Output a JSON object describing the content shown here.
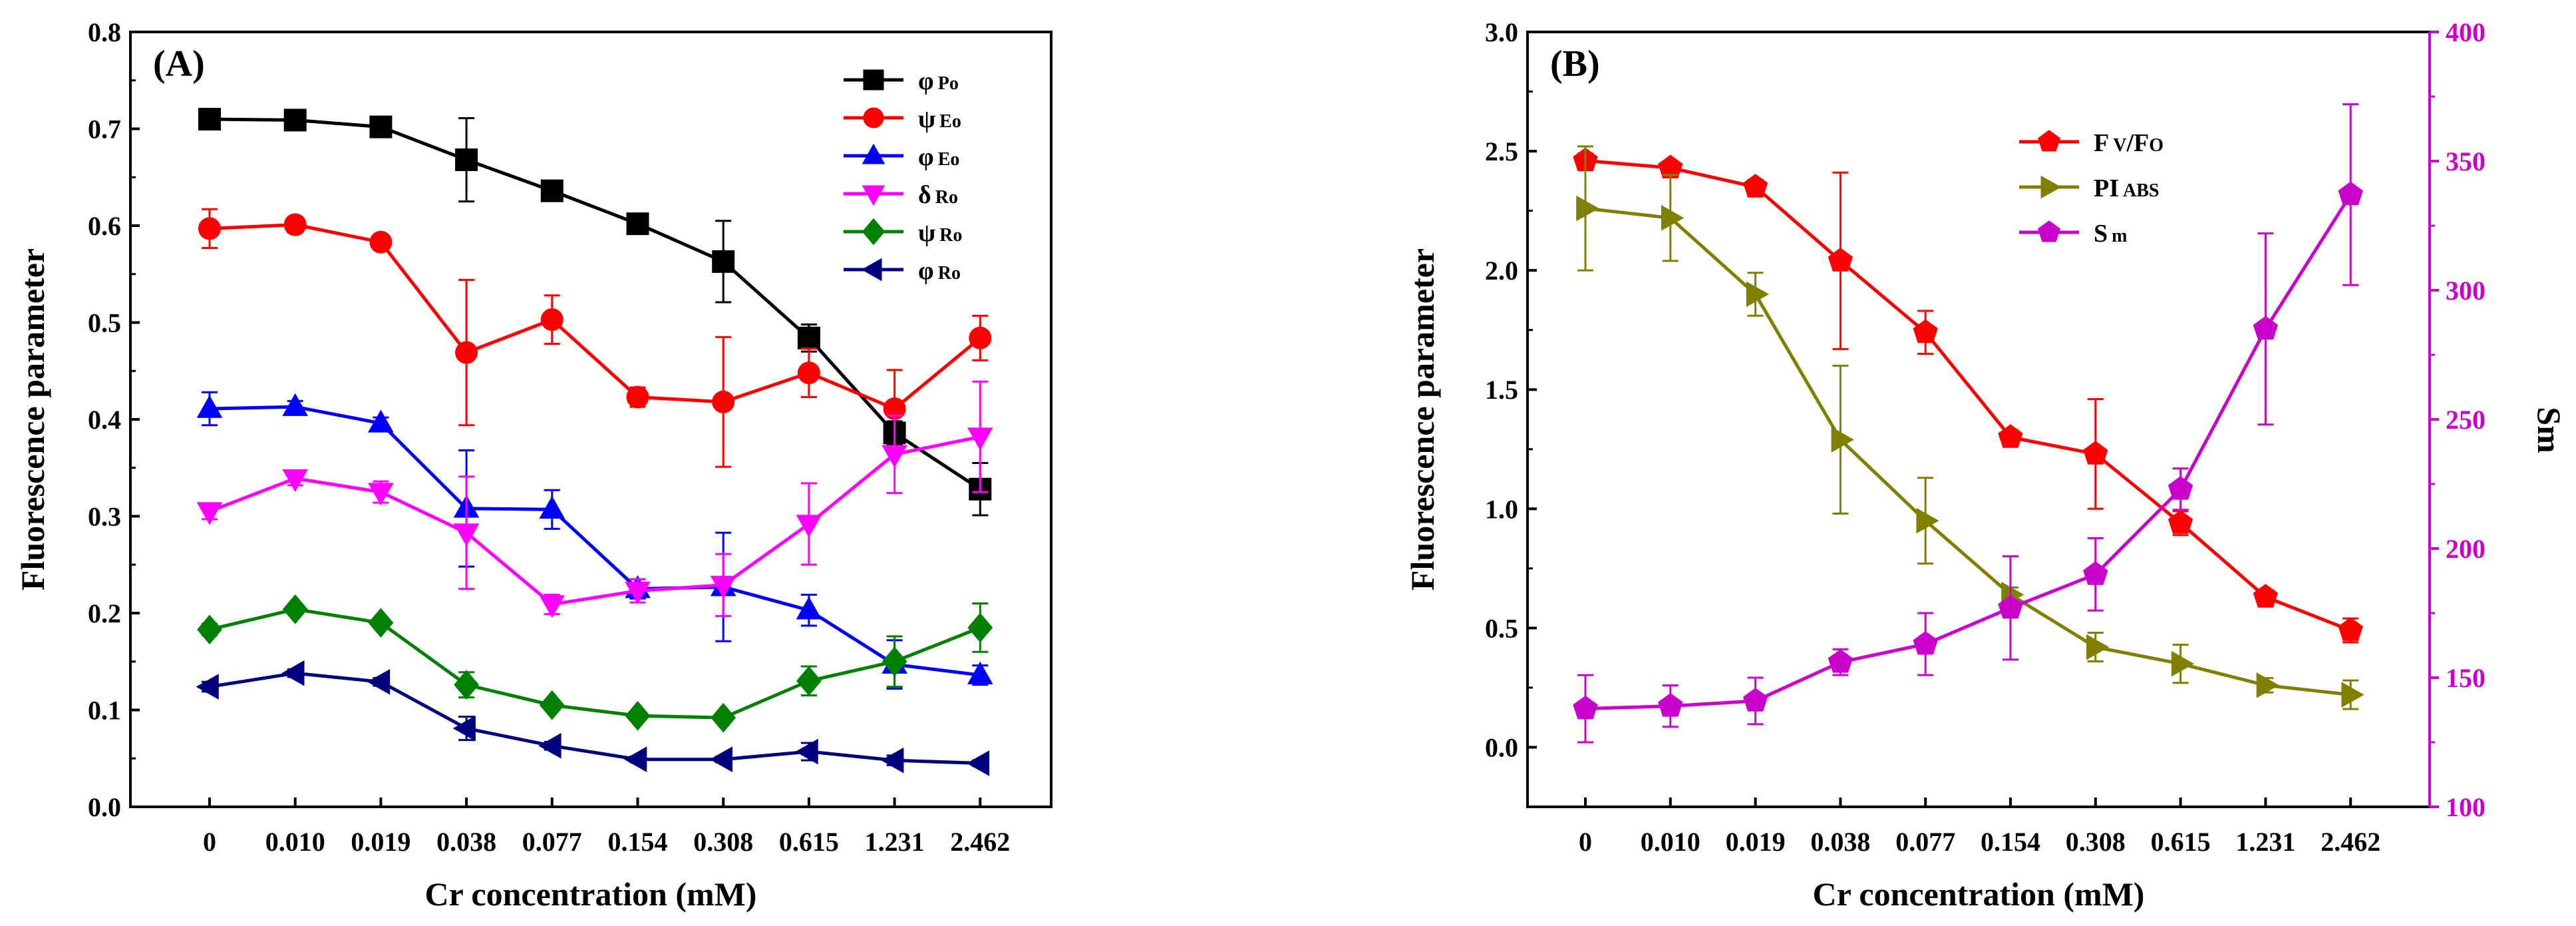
{
  "chart_data": [
    {
      "type": "line",
      "panel_label": "(A)",
      "xlabel": "Cr concentration (mM)",
      "ylabel": "Fluorescence parameter",
      "categories": [
        "0",
        "0.010",
        "0.019",
        "0.038",
        "0.077",
        "0.154",
        "0.308",
        "0.615",
        "1.231",
        "2.462"
      ],
      "ylim": [
        0,
        0.8
      ],
      "yticks": [
        "0.0",
        "0.1",
        "0.2",
        "0.3",
        "0.4",
        "0.5",
        "0.6",
        "0.7",
        "0.8"
      ],
      "legend_position": "top-right",
      "series": [
        {
          "name": "φPo",
          "symbol": "φ",
          "sub": "Po",
          "color": "#000000",
          "marker": "square",
          "values": [
            0.71,
            0.709,
            0.702,
            0.668,
            0.636,
            0.602,
            0.563,
            0.484,
            0.386,
            0.328
          ],
          "errors": [
            0.005,
            0.004,
            0.005,
            0.043,
            0.008,
            0.006,
            0.042,
            0.014,
            0.012,
            0.027
          ]
        },
        {
          "name": "ψEo",
          "symbol": "ψ",
          "sub": "Eo",
          "color": "#ff0000",
          "marker": "circle",
          "values": [
            0.597,
            0.601,
            0.583,
            0.469,
            0.503,
            0.423,
            0.418,
            0.448,
            0.411,
            0.484
          ],
          "errors": [
            0.02,
            0.008,
            0.006,
            0.075,
            0.025,
            0.01,
            0.067,
            0.025,
            0.04,
            0.023
          ]
        },
        {
          "name": "φEo",
          "symbol": "φ",
          "sub": "Eo",
          "color": "#0000ff",
          "marker": "triangle-up",
          "values": [
            0.411,
            0.413,
            0.396,
            0.308,
            0.307,
            0.225,
            0.227,
            0.203,
            0.147,
            0.136
          ],
          "errors": [
            0.017,
            0.006,
            0.006,
            0.06,
            0.02,
            0.01,
            0.056,
            0.016,
            0.025,
            0.01
          ]
        },
        {
          "name": "δRo",
          "symbol": "δ",
          "sub": "Ro",
          "color": "#ff00ff",
          "marker": "triangle-down",
          "values": [
            0.305,
            0.339,
            0.325,
            0.283,
            0.209,
            0.223,
            0.229,
            0.292,
            0.364,
            0.382
          ],
          "errors": [
            0.008,
            0.007,
            0.011,
            0.058,
            0.01,
            0.012,
            0.032,
            0.042,
            0.04,
            0.057
          ]
        },
        {
          "name": "ψRo",
          "symbol": "ψ",
          "sub": "Ro",
          "color": "#008000",
          "marker": "diamond",
          "values": [
            0.183,
            0.204,
            0.19,
            0.126,
            0.105,
            0.094,
            0.092,
            0.13,
            0.15,
            0.185
          ],
          "errors": [
            0.006,
            0.005,
            0.005,
            0.013,
            0.005,
            0.004,
            0.004,
            0.015,
            0.026,
            0.025
          ]
        },
        {
          "name": "φRo",
          "symbol": "φ",
          "sub": "Ro",
          "color": "#00007f",
          "marker": "triangle-left",
          "values": [
            0.124,
            0.138,
            0.129,
            0.081,
            0.063,
            0.049,
            0.049,
            0.057,
            0.048,
            0.045
          ],
          "errors": [
            0.005,
            0.004,
            0.004,
            0.012,
            0.004,
            0.003,
            0.003,
            0.009,
            0.005,
            0.003
          ]
        }
      ]
    },
    {
      "type": "line",
      "panel_label": "(B)",
      "xlabel": "Cr concentration (mM)",
      "ylabel": "Fluorescence parameter",
      "y2label": "Sm",
      "categories": [
        "0",
        "0.010",
        "0.019",
        "0.038",
        "0.077",
        "0.154",
        "0.308",
        "0.615",
        "1.231",
        "2.462"
      ],
      "ylim": [
        -0.25,
        3.0
      ],
      "yticks": [
        "0.0",
        "0.5",
        "1.0",
        "1.5",
        "2.0",
        "2.5",
        "3.0"
      ],
      "y2lim": [
        100,
        400
      ],
      "y2ticks": [
        "100",
        "150",
        "200",
        "250",
        "300",
        "350",
        "400"
      ],
      "legend_position": "top-center",
      "series": [
        {
          "name": "Fv/Fo",
          "symbol": "F",
          "sub": "V",
          "symbol2": "/F",
          "sub2": "O",
          "color": "#ff0000",
          "marker": "pentagon",
          "axis": "left",
          "values": [
            2.46,
            2.43,
            2.35,
            2.04,
            1.74,
            1.3,
            1.23,
            0.94,
            0.63,
            0.49
          ],
          "errors": [
            0.03,
            0.02,
            0.03,
            0.37,
            0.09,
            0.03,
            0.23,
            0.05,
            0.03,
            0.05
          ]
        },
        {
          "name": "PIABS",
          "symbol": "PI",
          "sub": "ABS",
          "color": "#808000",
          "marker": "triangle-right",
          "axis": "left",
          "values": [
            2.26,
            2.22,
            1.9,
            1.29,
            0.95,
            0.64,
            0.42,
            0.35,
            0.26,
            0.22
          ],
          "errors": [
            0.26,
            0.18,
            0.09,
            0.31,
            0.18,
            0.03,
            0.06,
            0.08,
            0.03,
            0.06
          ]
        },
        {
          "name": "Sm",
          "symbol": "S",
          "sub": "m",
          "color": "#cc00cc",
          "marker": "pentagon",
          "axis": "right",
          "values": [
            138,
            139,
            141,
            156,
            163,
            177,
            190,
            223,
            285,
            337
          ],
          "errors": [
            13,
            8,
            9,
            5,
            12,
            20,
            14,
            8,
            37,
            35
          ]
        }
      ]
    }
  ]
}
